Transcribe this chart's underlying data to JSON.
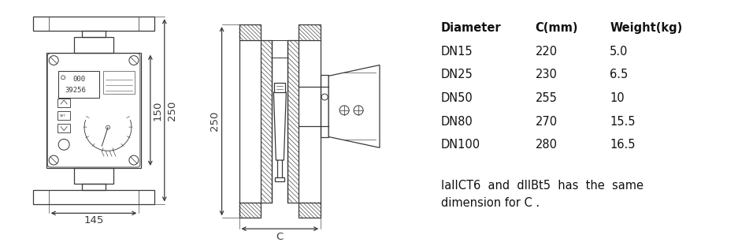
{
  "bg_color": "#ffffff",
  "line_color": "#3a3a3a",
  "table_headers": [
    "Diameter",
    "C(mm)",
    "Weight(kg)"
  ],
  "table_rows": [
    [
      "DN15",
      "220",
      "5.0"
    ],
    [
      "DN25",
      "230",
      "6.5"
    ],
    [
      "DN50",
      "255",
      "10"
    ],
    [
      "DN80",
      "270",
      "15.5"
    ],
    [
      "DN100",
      "280",
      "16.5"
    ]
  ],
  "footnote_line1": "IaIICT6  and  dIIBt5  has  the  same",
  "footnote_line2": "dimension for C .",
  "dim_145": "145",
  "dim_250_left": "250",
  "dim_150": "150",
  "dim_250_right": "250",
  "dim_C": "C",
  "header_fontsize": 10.5,
  "table_fontsize": 10.5,
  "footnote_fontsize": 10.5,
  "dim_fontsize": 9.5
}
